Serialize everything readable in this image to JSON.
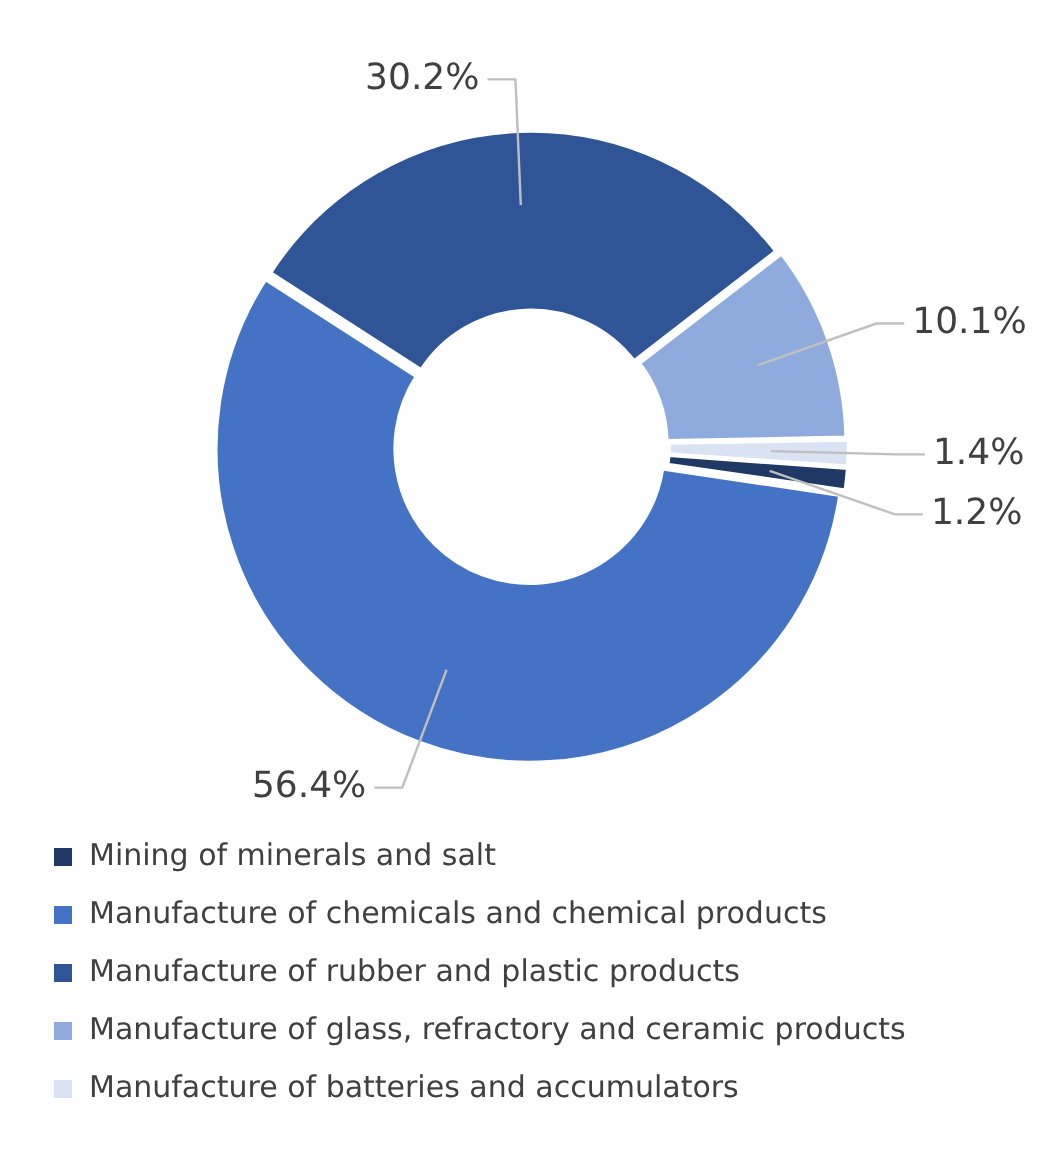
{
  "chart_data": {
    "type": "donut",
    "categories": [
      "Mining of minerals and salt",
      "Manufacture of chemicals and chemical products",
      "Manufacture of rubber and plastic products",
      "Manufacture of glass, refractory and ceramic products",
      "Manufacture of batteries and accumulators"
    ],
    "values": [
      1.2,
      56.4,
      30.2,
      10.1,
      1.4
    ],
    "value_labels": [
      "1.2%",
      "56.4%",
      "30.2%",
      "10.1%",
      "1.4%"
    ],
    "colors": [
      "#1f3864",
      "#4472c4",
      "#2f5597",
      "#8faadc",
      "#dae3f3"
    ],
    "legend": "bottom"
  }
}
